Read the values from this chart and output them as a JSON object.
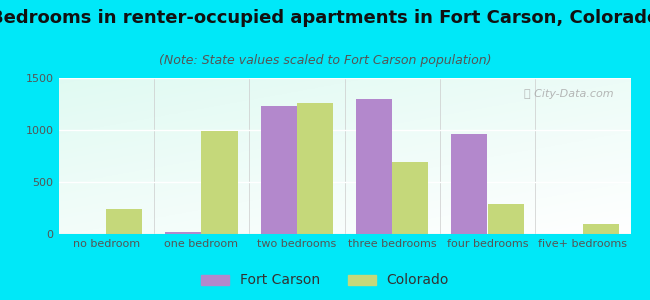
{
  "title": "Bedrooms in renter-occupied apartments in Fort Carson, Colorado",
  "subtitle": "(Note: State values scaled to Fort Carson population)",
  "categories": [
    "no bedroom",
    "one bedroom",
    "two bedrooms",
    "three bedrooms",
    "four bedrooms",
    "five+ bedrooms"
  ],
  "fort_carson_values": [
    0,
    20,
    1230,
    1300,
    960,
    0
  ],
  "colorado_values": [
    240,
    990,
    1255,
    695,
    290,
    100
  ],
  "fort_carson_color": "#b388cc",
  "colorado_color": "#c5d87a",
  "background_color": "#00e8f8",
  "ylim": [
    0,
    1500
  ],
  "yticks": [
    0,
    500,
    1000,
    1500
  ],
  "bar_width": 0.38,
  "title_fontsize": 13,
  "subtitle_fontsize": 9,
  "tick_fontsize": 8,
  "legend_fontsize": 10
}
